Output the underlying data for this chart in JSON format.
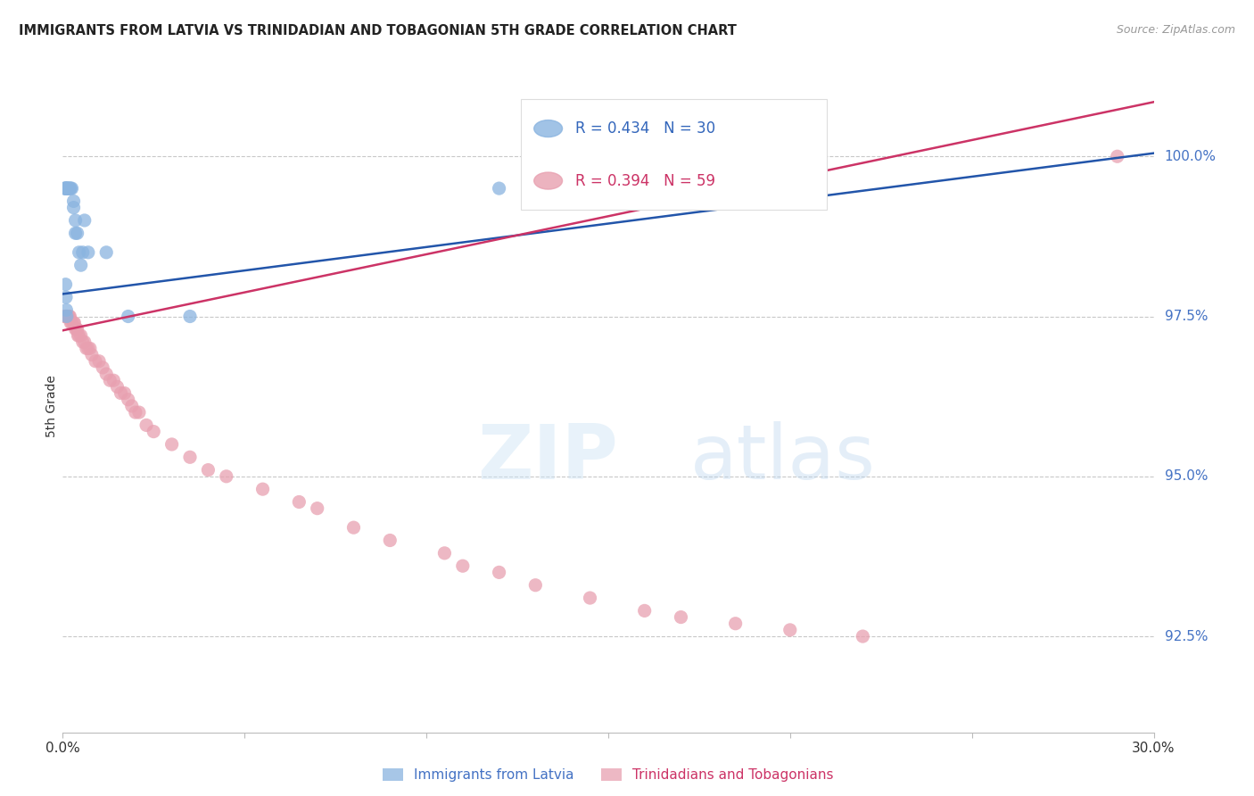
{
  "title": "IMMIGRANTS FROM LATVIA VS TRINIDADIAN AND TOBAGONIAN 5TH GRADE CORRELATION CHART",
  "source": "Source: ZipAtlas.com",
  "ylabel": "5th Grade",
  "y_tick_labels": [
    "92.5%",
    "95.0%",
    "97.5%",
    "100.0%"
  ],
  "y_ticks": [
    92.5,
    95.0,
    97.5,
    100.0
  ],
  "x_lim": [
    0.0,
    30.0
  ],
  "y_lim": [
    91.0,
    101.2
  ],
  "legend_r_blue": "R = 0.434",
  "legend_n_blue": "N = 30",
  "legend_r_pink": "R = 0.394",
  "legend_n_pink": "N = 59",
  "legend_label_blue": "Immigrants from Latvia",
  "legend_label_pink": "Trinidadians and Tobagonians",
  "blue_color": "#8ab4e0",
  "pink_color": "#e8a0b0",
  "blue_line_color": "#2255aa",
  "pink_line_color": "#cc3366",
  "blue_line_y0": 97.85,
  "blue_line_y1": 100.05,
  "pink_line_y0": 97.28,
  "pink_line_y1": 100.85,
  "blue_x": [
    0.05,
    0.07,
    0.08,
    0.09,
    0.1,
    0.12,
    0.13,
    0.15,
    0.18,
    0.2,
    0.22,
    0.25,
    0.3,
    0.35,
    0.4,
    0.45,
    0.5,
    0.55,
    0.6,
    0.7,
    0.08,
    0.09,
    0.1,
    0.11,
    0.3,
    0.35,
    1.2,
    1.8,
    3.5,
    12.0
  ],
  "blue_y": [
    99.5,
    99.5,
    99.5,
    99.5,
    99.5,
    99.5,
    99.5,
    99.5,
    99.5,
    99.5,
    99.5,
    99.5,
    99.3,
    99.0,
    98.8,
    98.5,
    98.3,
    98.5,
    99.0,
    98.5,
    98.0,
    97.8,
    97.6,
    97.5,
    99.2,
    98.8,
    98.5,
    97.5,
    97.5,
    99.5
  ],
  "pink_x": [
    0.05,
    0.08,
    0.1,
    0.12,
    0.13,
    0.15,
    0.18,
    0.2,
    0.22,
    0.25,
    0.3,
    0.32,
    0.35,
    0.38,
    0.4,
    0.42,
    0.45,
    0.5,
    0.55,
    0.6,
    0.65,
    0.7,
    0.75,
    0.8,
    0.9,
    1.0,
    1.1,
    1.2,
    1.3,
    1.4,
    1.5,
    1.6,
    1.7,
    1.8,
    1.9,
    2.0,
    2.1,
    2.3,
    2.5,
    3.0,
    3.5,
    4.0,
    4.5,
    5.5,
    6.5,
    7.0,
    8.0,
    9.0,
    10.5,
    11.0,
    12.0,
    13.0,
    14.5,
    16.0,
    17.0,
    18.5,
    20.0,
    22.0,
    29.0
  ],
  "pink_y": [
    97.5,
    97.5,
    97.5,
    97.5,
    97.5,
    97.5,
    97.5,
    97.5,
    97.4,
    97.4,
    97.4,
    97.4,
    97.3,
    97.3,
    97.3,
    97.2,
    97.2,
    97.2,
    97.1,
    97.1,
    97.0,
    97.0,
    97.0,
    96.9,
    96.8,
    96.8,
    96.7,
    96.6,
    96.5,
    96.5,
    96.4,
    96.3,
    96.3,
    96.2,
    96.1,
    96.0,
    96.0,
    95.8,
    95.7,
    95.5,
    95.3,
    95.1,
    95.0,
    94.8,
    94.6,
    94.5,
    94.2,
    94.0,
    93.8,
    93.6,
    93.5,
    93.3,
    93.1,
    92.9,
    92.8,
    92.7,
    92.6,
    92.5,
    100.0
  ]
}
